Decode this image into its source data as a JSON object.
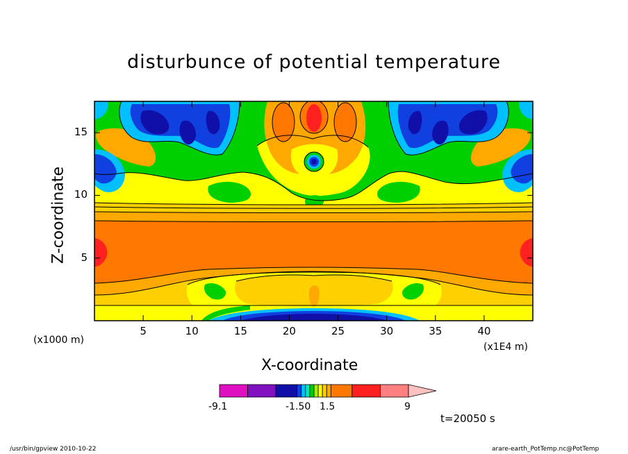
{
  "chart_data": {
    "type": "heatmap",
    "title": "disturbunce of potential temperature",
    "xlabel": "X-coordinate",
    "ylabel": "Z-coordinate",
    "x_unit": "(x1000 m)",
    "x_exponent_unit": "(x1E4 m)",
    "z_unit": "(x1000 m)",
    "x_ticks": [
      5,
      10,
      15,
      20,
      25,
      30,
      35,
      40
    ],
    "y_ticks": [
      5,
      10,
      15
    ],
    "xlim": [
      0,
      45
    ],
    "ylim": [
      0,
      17.5
    ],
    "colorbar": {
      "tick_labels": [
        "-9.1",
        "-1.50",
        "1.5",
        "9"
      ],
      "tick_values": [
        -9.1,
        -1.5,
        1.5,
        9
      ],
      "colors": [
        "#e010c0",
        "#8010c0",
        "#1010a8",
        "#1040e0",
        "#00c0ff",
        "#00e8c0",
        "#00d000",
        "#a0f000",
        "#ffff00",
        "#ffd000",
        "#ffa800",
        "#ff7800",
        "#ff2020",
        "#ff8080",
        "#ffc0c0"
      ],
      "extend": "max"
    },
    "time_label": "t=20050 s",
    "regions": [
      {
        "level": 0.5,
        "description": "background",
        "x": 0,
        "z": 0
      },
      {
        "level": 4.0,
        "description": "warm band",
        "x": 22.5,
        "z": 6.5
      },
      {
        "level": 6.0,
        "description": "warm core left edge",
        "x": 0,
        "z": 5.5
      },
      {
        "level": 6.0,
        "description": "warm core right edge",
        "x": 45,
        "z": 5.5
      },
      {
        "level": 7.0,
        "description": "upper warm lobe",
        "x": 22.5,
        "z": 16.5
      },
      {
        "level": -5.0,
        "description": "cold lobe",
        "x": 7,
        "z": 16
      },
      {
        "level": -5.0,
        "description": "cold lobe",
        "x": 38,
        "z": 16
      },
      {
        "level": -5.0,
        "description": "cold core",
        "x": 22.5,
        "z": 12.8
      },
      {
        "level": -4.0,
        "description": "cold left edge",
        "x": 1,
        "z": 12.5
      },
      {
        "level": -4.0,
        "description": "cold right edge",
        "x": 44,
        "z": 12.5
      },
      {
        "level": -5.0,
        "description": "surface cold layer",
        "x": 22.5,
        "z": 0.3
      }
    ]
  },
  "footer": {
    "left": "/usr/bin/gpview   2010-10-22",
    "right": "arare-earth_PotTemp.nc@PotTemp"
  }
}
